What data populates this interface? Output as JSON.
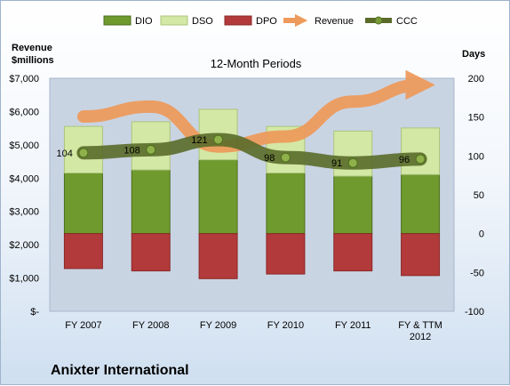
{
  "colors": {
    "dio": "#6f9a2d",
    "dso": "#d4e8a6",
    "dpo": "#b33a3a",
    "revenue": "#ee9a5a",
    "ccc": "#5a6b2a",
    "plot_bg": "#c9d4e3"
  },
  "chart_data": {
    "type": "bar",
    "title": "12-Month Periods",
    "company": "Anixter International",
    "y_left_label_line1": "Revenue",
    "y_left_label_line2": "$millions",
    "y_right_label": "Days",
    "categories": [
      "FY 2007",
      "FY 2008",
      "FY 2009",
      "FY 2010",
      "FY 2011",
      "FY & TTM 2012"
    ],
    "legend": [
      "DIO",
      "DSO",
      "DPO",
      "Revenue",
      "CCC"
    ],
    "y_left_ticks": [
      "$-",
      "$1,000",
      "$2,000",
      "$3,000",
      "$4,000",
      "$5,000",
      "$6,000",
      "$7,000"
    ],
    "y_right_ticks": [
      "-100",
      "-50",
      "0",
      "50",
      "100",
      "150",
      "200"
    ],
    "ylim_left": [
      0,
      7000
    ],
    "ylim_right": [
      -100,
      200
    ],
    "series": [
      {
        "name": "DIO",
        "values": [
          78,
          82,
          95,
          78,
          74,
          76
        ]
      },
      {
        "name": "DSO",
        "values": [
          60,
          62,
          65,
          60,
          58,
          60
        ]
      },
      {
        "name": "DPO",
        "values": [
          -45,
          -48,
          -58,
          -52,
          -48,
          -54
        ]
      },
      {
        "name": "Revenue",
        "values": [
          5850,
          6150,
          4950,
          5250,
          6300,
          6800
        ]
      },
      {
        "name": "CCC",
        "values": [
          104,
          108,
          121,
          98,
          91,
          96
        ]
      }
    ],
    "ccc_labels": [
      "104",
      "108",
      "121",
      "98",
      "91",
      "96"
    ]
  }
}
